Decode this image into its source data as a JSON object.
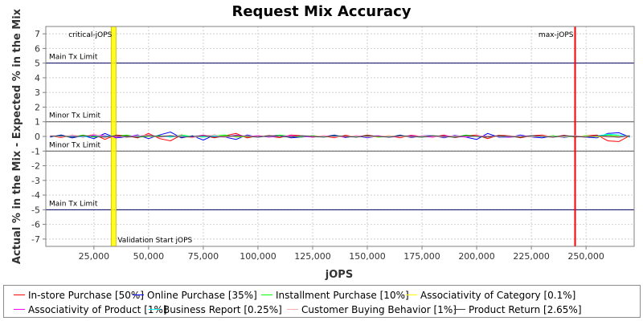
{
  "chart_data": {
    "type": "line",
    "title": "Request Mix Accuracy",
    "xlabel": "jOPS",
    "ylabel": "Actual % in the Mix - Expected % in the Mix",
    "xlim": [
      3000,
      272000
    ],
    "ylim": [
      -7.5,
      7.5
    ],
    "x_ticks": [
      25000,
      50000,
      75000,
      100000,
      125000,
      150000,
      175000,
      200000,
      225000,
      250000
    ],
    "x_tick_labels": [
      "25,000",
      "50,000",
      "75,000",
      "100,000",
      "125,000",
      "150,000",
      "175,000",
      "200,000",
      "225,000",
      "250,000"
    ],
    "y_ticks": [
      -7,
      -6,
      -5,
      -4,
      -3,
      -2,
      -1,
      0,
      1,
      2,
      3,
      4,
      5,
      6,
      7
    ],
    "y_tick_labels": [
      "-7",
      "-6",
      "-5",
      "-4",
      "-3",
      "-2",
      "-1",
      "0",
      "1",
      "2",
      "3",
      "4",
      "5",
      "6",
      "7"
    ],
    "grid": true,
    "legend_position": "bottom",
    "horizontal_lines": [
      {
        "y": 5,
        "label": "Main Tx Limit",
        "label_side": "above"
      },
      {
        "y": 1,
        "label": "Minor Tx Limit",
        "label_side": "above"
      },
      {
        "y": -1,
        "label": "Minor Tx Limit",
        "label_side": "above"
      },
      {
        "y": -5,
        "label": "Main Tx Limit",
        "label_side": "above"
      }
    ],
    "vertical_markers": [
      {
        "x": 34000,
        "label": "critical-jOPS",
        "color": "#ffff00",
        "style": "band",
        "label_position": "top-left"
      },
      {
        "x": 34000,
        "label": "Validation Start jOPS",
        "color": "#ffff00",
        "style": "band",
        "label_position": "bottom-right"
      },
      {
        "x": 245000,
        "label": "max-jOPS",
        "color": "#ff0000",
        "style": "line",
        "label_position": "top-left"
      }
    ],
    "x": [
      5000,
      10000,
      15000,
      20000,
      25000,
      30000,
      35000,
      40000,
      45000,
      50000,
      55000,
      60000,
      65000,
      70000,
      75000,
      80000,
      85000,
      90000,
      95000,
      100000,
      105000,
      110000,
      115000,
      120000,
      125000,
      130000,
      135000,
      140000,
      145000,
      150000,
      155000,
      160000,
      165000,
      170000,
      175000,
      180000,
      185000,
      190000,
      195000,
      200000,
      205000,
      210000,
      215000,
      220000,
      225000,
      230000,
      235000,
      240000,
      245000,
      250000,
      255000,
      260000,
      265000,
      270000
    ],
    "series": [
      {
        "name": "In-store Purchase [50%]",
        "color": "#ff0000",
        "values": [
          0.05,
          -0.08,
          0.1,
          -0.05,
          0.15,
          -0.2,
          0.1,
          0.05,
          -0.1,
          0.2,
          -0.15,
          -0.3,
          0.1,
          -0.05,
          0.08,
          -0.1,
          0.05,
          0.2,
          -0.1,
          0.05,
          0.0,
          -0.08,
          0.1,
          0.05,
          -0.05,
          0.02,
          -0.1,
          0.08,
          -0.05,
          0.1,
          -0.02,
          0.05,
          -0.1,
          0.08,
          0.0,
          -0.05,
          0.1,
          -0.08,
          0.05,
          0.1,
          -0.15,
          0.08,
          0.05,
          -0.1,
          0.05,
          0.1,
          -0.05,
          0.08,
          -0.05,
          0.05,
          0.1,
          -0.3,
          -0.35,
          0.05
        ]
      },
      {
        "name": "Online Purchase [35%]",
        "color": "#0000ff",
        "values": [
          -0.05,
          0.1,
          -0.1,
          0.05,
          -0.15,
          0.2,
          -0.1,
          -0.05,
          0.1,
          -0.15,
          0.1,
          0.3,
          -0.1,
          0.05,
          -0.25,
          0.1,
          -0.05,
          -0.2,
          0.1,
          -0.05,
          0.05,
          0.08,
          -0.1,
          -0.05,
          0.05,
          -0.02,
          0.1,
          -0.08,
          0.05,
          -0.1,
          0.02,
          -0.05,
          0.1,
          -0.08,
          0.05,
          0.05,
          -0.1,
          0.08,
          -0.05,
          -0.2,
          0.2,
          -0.05,
          -0.05,
          0.1,
          -0.05,
          -0.1,
          0.05,
          -0.08,
          0.05,
          -0.05,
          -0.1,
          0.2,
          0.25,
          -0.05
        ]
      },
      {
        "name": "Installment Purchase [10%]",
        "color": "#00ff00",
        "values": [
          0.0,
          0.05,
          -0.05,
          0.1,
          -0.05,
          0.05,
          0.0,
          0.1,
          -0.05,
          0.0,
          0.05,
          -0.05,
          0.1,
          0.0,
          -0.05,
          0.05,
          0.1,
          -0.05,
          0.0,
          0.05,
          -0.05,
          0.1,
          0.0,
          -0.05,
          0.05,
          0.0,
          0.05,
          -0.05,
          0.0,
          0.05,
          -0.05,
          0.0,
          0.05,
          0.0,
          -0.05,
          0.05,
          0.0,
          -0.05,
          0.1,
          0.0,
          -0.05,
          0.05,
          0.0,
          -0.05,
          0.05,
          0.0,
          0.05,
          -0.05,
          0.0,
          0.05,
          0.0,
          0.1,
          0.05,
          0.0
        ]
      },
      {
        "name": "Associativity of Category [0.1%]",
        "color": "#ffff00",
        "values": [
          0.0,
          0.02,
          -0.02,
          0.0,
          0.02,
          0.0,
          -0.02,
          0.0,
          0.02,
          0.0,
          -0.02,
          0.0,
          0.02,
          0.0,
          -0.02,
          0.0,
          0.02,
          0.0,
          -0.02,
          0.0,
          0.02,
          0.0,
          -0.02,
          0.0,
          0.02,
          0.0,
          -0.02,
          0.0,
          0.02,
          0.0,
          -0.02,
          0.0,
          0.02,
          0.0,
          -0.02,
          0.0,
          0.02,
          0.0,
          -0.02,
          0.0,
          0.02,
          0.0,
          -0.02,
          0.0,
          0.02,
          0.0,
          -0.02,
          0.0,
          0.02,
          0.0,
          -0.02,
          0.0,
          0.02,
          0.0
        ]
      },
      {
        "name": "Associativity of Product [1%]",
        "color": "#ff00ff",
        "values": [
          0.05,
          0.0,
          0.05,
          -0.05,
          0.1,
          0.05,
          -0.05,
          0.0,
          0.05,
          0.1,
          -0.05,
          0.0,
          0.05,
          -0.05,
          0.1,
          0.0,
          -0.05,
          0.1,
          0.0,
          0.05,
          -0.05,
          0.0,
          0.05,
          0.0,
          -0.05,
          0.05,
          0.0,
          -0.05,
          0.05,
          0.0,
          0.05,
          -0.05,
          0.0,
          0.05,
          0.0,
          -0.05,
          0.05,
          0.0,
          -0.05,
          0.05,
          0.0,
          0.05,
          -0.05,
          0.0,
          0.05,
          0.0,
          -0.05,
          0.05,
          0.0,
          -0.05,
          0.05,
          0.0,
          -0.05,
          0.05
        ]
      },
      {
        "name": "Business Report [0.25%]",
        "color": "#00ffff",
        "values": [
          0.0,
          0.03,
          0.0,
          -0.03,
          0.03,
          0.0,
          0.05,
          -0.03,
          0.0,
          0.03,
          0.0,
          -0.03,
          0.03,
          0.0,
          -0.03,
          0.03,
          0.0,
          0.05,
          0.0,
          -0.03,
          0.03,
          0.0,
          -0.03,
          0.03,
          0.0,
          -0.03,
          0.03,
          0.0,
          -0.03,
          0.03,
          0.0,
          -0.03,
          0.03,
          0.0,
          -0.03,
          0.03,
          0.0,
          -0.03,
          0.03,
          0.0,
          -0.03,
          0.03,
          0.0,
          -0.03,
          0.03,
          0.0,
          -0.03,
          0.03,
          0.0,
          -0.03,
          0.03,
          0.15,
          0.1,
          0.0
        ]
      },
      {
        "name": "Customer Buying Behavior [1%]",
        "color": "#ffafaf",
        "values": [
          0.05,
          -0.05,
          0.1,
          0.0,
          0.15,
          -0.05,
          0.05,
          -0.1,
          0.05,
          0.1,
          -0.05,
          0.05,
          0.0,
          -0.1,
          0.05,
          0.1,
          -0.05,
          0.0,
          0.05,
          -0.05,
          0.1,
          0.0,
          -0.05,
          0.05,
          0.0,
          0.05,
          -0.05,
          0.0,
          0.05,
          -0.05,
          0.0,
          0.05,
          0.0,
          -0.05,
          0.05,
          0.0,
          -0.05,
          0.05,
          0.0,
          0.05,
          -0.05,
          0.0,
          0.05,
          0.0,
          -0.05,
          0.05,
          0.0,
          -0.05,
          0.05,
          0.0,
          0.05,
          -0.05,
          0.0,
          0.05
        ]
      },
      {
        "name": "Product Return [2.65%]",
        "color": "#404040",
        "values": [
          0.0,
          0.05,
          -0.05,
          0.05,
          0.0,
          -0.05,
          0.05,
          0.0,
          -0.05,
          0.05,
          0.0,
          0.05,
          -0.05,
          0.0,
          0.05,
          -0.05,
          0.0,
          0.05,
          0.0,
          -0.05,
          0.05,
          0.0,
          -0.05,
          0.05,
          0.0,
          -0.05,
          0.05,
          0.0,
          -0.05,
          0.05,
          0.0,
          -0.05,
          0.05,
          0.0,
          -0.05,
          0.05,
          0.0,
          -0.05,
          0.05,
          0.0,
          -0.05,
          0.05,
          0.0,
          -0.05,
          0.05,
          0.0,
          -0.05,
          0.05,
          0.0,
          -0.05,
          0.05,
          0.0,
          -0.05,
          0.05
        ]
      }
    ]
  }
}
